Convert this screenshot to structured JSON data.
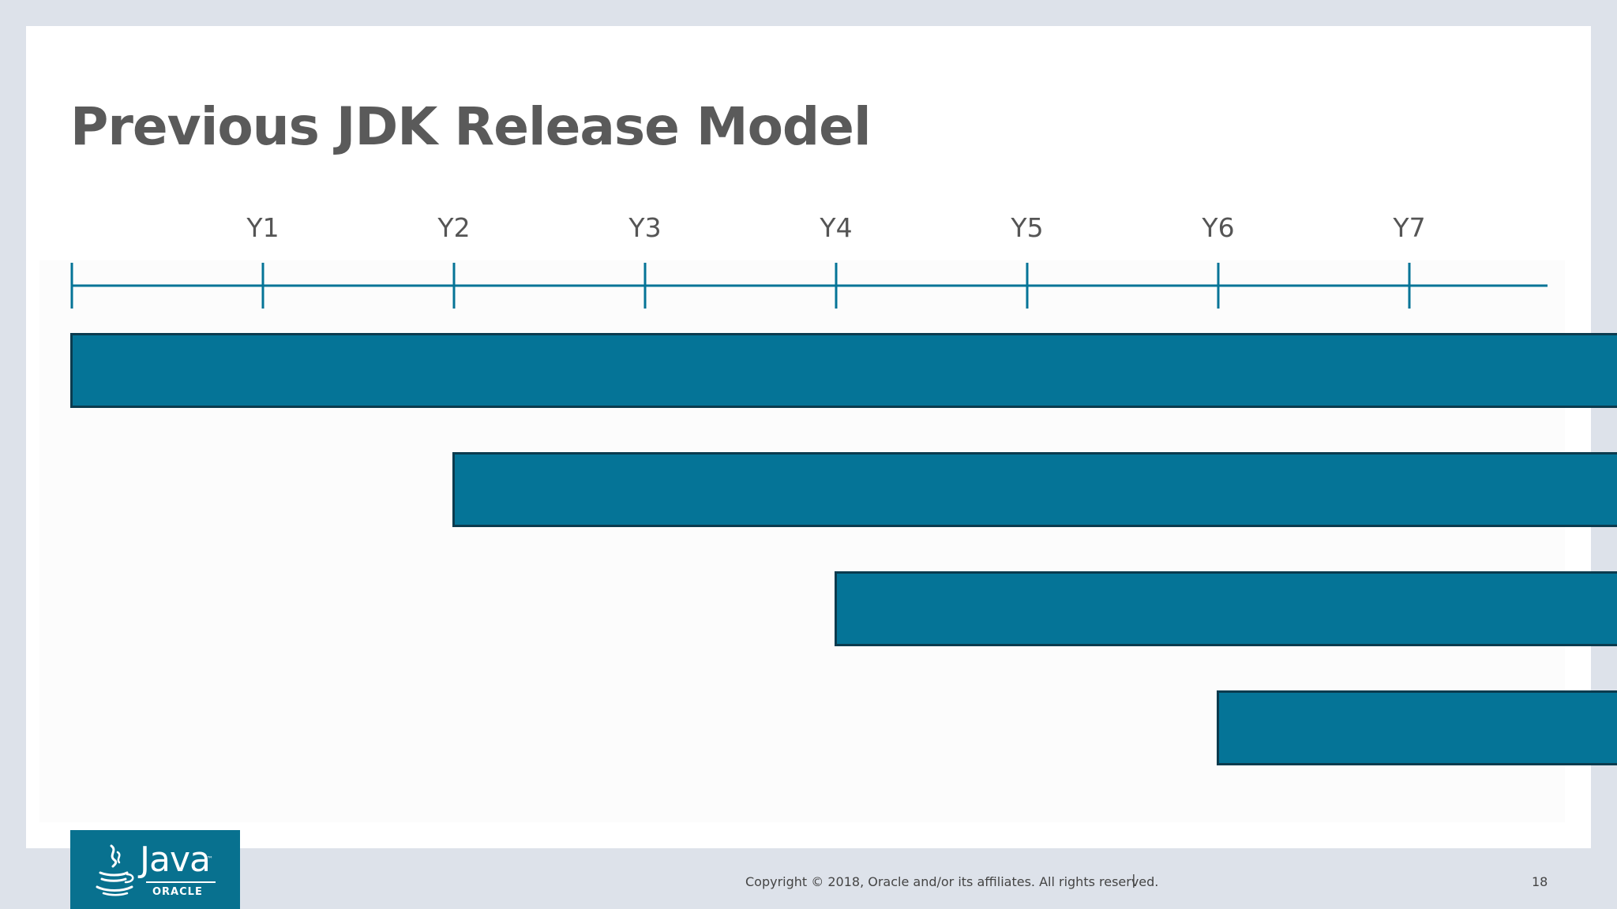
{
  "slide": {
    "title": "Previous JDK Release Model"
  },
  "timeline": {
    "year_labels": [
      "Y1",
      "Y2",
      "Y3",
      "Y4",
      "Y5",
      "Y6",
      "Y7"
    ],
    "releases": [
      {
        "start_year": 0
      },
      {
        "start_year": 2
      },
      {
        "start_year": 4
      },
      {
        "start_year": 6
      }
    ],
    "colors": {
      "axis": "#057497",
      "bar_fill": "#057497",
      "bar_border": "#0b3b4e"
    }
  },
  "logo": {
    "icon": "java-cup-icon",
    "wordmark": "Java",
    "trademark": "™",
    "company": "ORACLE"
  },
  "footer": {
    "copyright": "Copyright © 2018, Oracle and/or its affiliates. All rights reserved.",
    "separator": "|",
    "page_number": "18"
  }
}
